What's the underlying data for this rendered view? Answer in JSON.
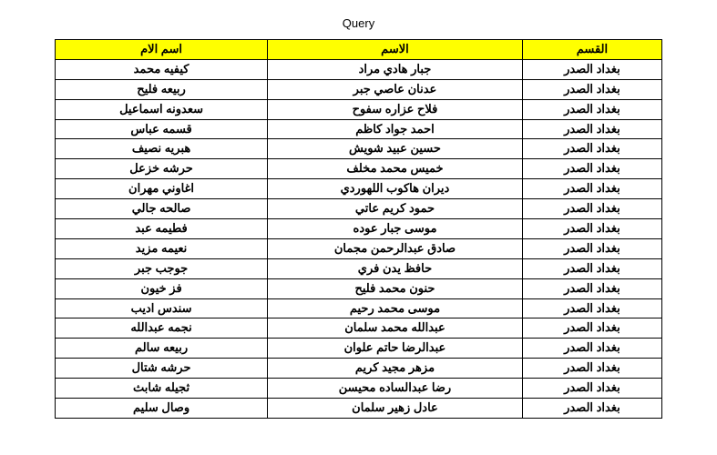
{
  "title": "Query",
  "headers": {
    "dept": "القسم",
    "name": "الاسم",
    "mother": "اسم الام"
  },
  "rows": [
    {
      "dept": "بغداد الصدر",
      "name": "جبار هادي مراد",
      "mother": "كيفيه محمد"
    },
    {
      "dept": "بغداد الصدر",
      "name": "عدنان عاصي جبر",
      "mother": "ربيعه فليح"
    },
    {
      "dept": "بغداد الصدر",
      "name": "فلاح عزاره سفوح",
      "mother": "سعدونه اسماعيل"
    },
    {
      "dept": "بغداد الصدر",
      "name": "احمد جواد كاظم",
      "mother": "قسمه عباس"
    },
    {
      "dept": "بغداد الصدر",
      "name": "حسين عبيد شويش",
      "mother": "هبريه نصيف"
    },
    {
      "dept": "بغداد الصدر",
      "name": "خميس محمد مخلف",
      "mother": "حرشه خزعل"
    },
    {
      "dept": "بغداد الصدر",
      "name": "ديران هاكوب اللهوردي",
      "mother": "اغاوني مهران"
    },
    {
      "dept": "بغداد الصدر",
      "name": "حمود كريم عاتي",
      "mother": "صالحه جالي"
    },
    {
      "dept": "بغداد الصدر",
      "name": "موسى جبار عوده",
      "mother": "فطيمه عبد"
    },
    {
      "dept": "بغداد الصدر",
      "name": "صادق عبدالرحمن مجمان",
      "mother": "نعيمه مزيد"
    },
    {
      "dept": "بغداد الصدر",
      "name": "حافظ يدن فري",
      "mother": "جوجب جبر"
    },
    {
      "dept": "بغداد الصدر",
      "name": "حنون محمد فليح",
      "mother": "فز خيون"
    },
    {
      "dept": "بغداد الصدر",
      "name": "موسى محمد رحيم",
      "mother": "سندس اديب"
    },
    {
      "dept": "بغداد الصدر",
      "name": "عبدالله محمد سلمان",
      "mother": "نجمه عبدالله"
    },
    {
      "dept": "بغداد الصدر",
      "name": "عبدالرضا حاتم علوان",
      "mother": "ربيعه سالم"
    },
    {
      "dept": "بغداد الصدر",
      "name": "مزهر مجيد كريم",
      "mother": "حرشه شتال"
    },
    {
      "dept": "بغداد الصدر",
      "name": "رضا عبدالساده محيسن",
      "mother": "ثجيله شابث"
    },
    {
      "dept": "بغداد الصدر",
      "name": "عادل زهير سلمان",
      "mother": "وصال سليم"
    }
  ],
  "colors": {
    "header_bg": "#ffff00",
    "border": "#000000",
    "text": "#000000",
    "page_bg": "#ffffff"
  }
}
